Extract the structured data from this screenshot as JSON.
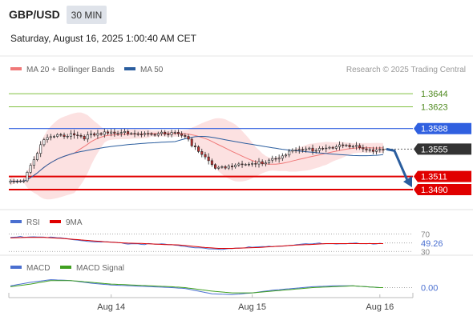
{
  "header": {
    "pair": "GBP/USD",
    "timeframe": "30 MIN",
    "datetime": "Saturday, August 16, 2025 1:00:40 AM CET"
  },
  "colors": {
    "support_line": "#e00000",
    "resistance_line": "#80c040",
    "pivot_line": "#3060e0",
    "bollinger": "#f07878",
    "ma50": "#2a5d9e",
    "rsi": "#4a6fd0",
    "rsi_ma": "#e00000",
    "macd": "#4a6fd0",
    "macd_signal": "#40a020",
    "bull_candle": "#ffffff",
    "bear_candle": "#c23030",
    "arrow": "#2a5d9e"
  },
  "chart_data": [
    {
      "type": "candlestick",
      "title": "",
      "legend": [
        {
          "label": "MA 20 + Bollinger Bands",
          "color": "#f07878"
        },
        {
          "label": "MA 50",
          "color": "#2a5d9e"
        }
      ],
      "legend_placement": "top-left",
      "watermark": "Research © 2025 Trading Central",
      "ylim": [
        1.3463,
        1.3666
      ],
      "levels": [
        {
          "value": 1.3644,
          "label": "1.3644",
          "kind": "resistance"
        },
        {
          "value": 1.3623,
          "label": "1.3623",
          "kind": "resistance"
        },
        {
          "value": 1.3588,
          "label": "1.3588",
          "kind": "pivot"
        },
        {
          "value": 1.3555,
          "label": "1.3555",
          "kind": "last"
        },
        {
          "value": 1.3511,
          "label": "1.3511",
          "kind": "support"
        },
        {
          "value": 1.349,
          "label": "1.3490",
          "kind": "support"
        }
      ],
      "x_ticks": [
        {
          "index": 30,
          "label": "Aug 14"
        },
        {
          "index": 72,
          "label": "Aug 15"
        },
        {
          "index": 110,
          "label": "Aug 16"
        }
      ],
      "x_count": 112,
      "close_anchors": [
        [
          0,
          1.3503
        ],
        [
          4,
          1.3507
        ],
        [
          6,
          1.353
        ],
        [
          8,
          1.355
        ],
        [
          10,
          1.357
        ],
        [
          14,
          1.3575
        ],
        [
          18,
          1.358
        ],
        [
          22,
          1.3575
        ],
        [
          26,
          1.3577
        ],
        [
          30,
          1.3581
        ],
        [
          34,
          1.3585
        ],
        [
          38,
          1.3578
        ],
        [
          42,
          1.3576
        ],
        [
          46,
          1.358
        ],
        [
          48,
          1.3584
        ],
        [
          50,
          1.358
        ],
        [
          52,
          1.3578
        ],
        [
          54,
          1.356
        ],
        [
          56,
          1.355
        ],
        [
          58,
          1.354
        ],
        [
          60,
          1.3528
        ],
        [
          62,
          1.3526
        ],
        [
          66,
          1.353
        ],
        [
          70,
          1.3528
        ],
        [
          74,
          1.3532
        ],
        [
          78,
          1.354
        ],
        [
          82,
          1.3548
        ],
        [
          86,
          1.3552
        ],
        [
          90,
          1.3555
        ],
        [
          94,
          1.3558
        ],
        [
          98,
          1.356
        ],
        [
          102,
          1.3558
        ],
        [
          106,
          1.3555
        ],
        [
          110,
          1.3555
        ]
      ],
      "projection": {
        "from": 1.3555,
        "to": 1.3495
      }
    },
    {
      "type": "line",
      "name": "RSI",
      "legend": [
        {
          "label": "RSI",
          "color": "#4a6fd0"
        },
        {
          "label": "9MA",
          "color": "#e00000"
        }
      ],
      "ylim": [
        25,
        80
      ],
      "ticks": [
        70,
        30
      ],
      "last_value": "49.26",
      "rsi_anchors": [
        [
          0,
          62
        ],
        [
          5,
          64
        ],
        [
          10,
          63
        ],
        [
          15,
          60
        ],
        [
          20,
          56
        ],
        [
          25,
          52
        ],
        [
          30,
          50
        ],
        [
          35,
          48
        ],
        [
          40,
          47
        ],
        [
          45,
          46
        ],
        [
          50,
          44
        ],
        [
          54,
          40
        ],
        [
          58,
          36
        ],
        [
          62,
          35
        ],
        [
          66,
          37
        ],
        [
          70,
          39
        ],
        [
          74,
          40
        ],
        [
          78,
          41
        ],
        [
          82,
          44
        ],
        [
          86,
          46
        ],
        [
          90,
          47
        ],
        [
          94,
          49
        ],
        [
          98,
          48
        ],
        [
          102,
          48
        ],
        [
          106,
          47
        ],
        [
          110,
          49
        ]
      ],
      "ma_anchors": [
        [
          0,
          61
        ],
        [
          5,
          62
        ],
        [
          10,
          62
        ],
        [
          15,
          60
        ],
        [
          20,
          57
        ],
        [
          25,
          54
        ],
        [
          30,
          51
        ],
        [
          35,
          49
        ],
        [
          40,
          48
        ],
        [
          45,
          46
        ],
        [
          50,
          45
        ],
        [
          54,
          42
        ],
        [
          58,
          39
        ],
        [
          62,
          37
        ],
        [
          66,
          37
        ],
        [
          70,
          38
        ],
        [
          74,
          39
        ],
        [
          78,
          41
        ],
        [
          82,
          43
        ],
        [
          86,
          45
        ],
        [
          90,
          46
        ],
        [
          94,
          48
        ],
        [
          98,
          48
        ],
        [
          102,
          48
        ],
        [
          106,
          48
        ],
        [
          110,
          48
        ]
      ]
    },
    {
      "type": "line",
      "name": "MACD",
      "legend": [
        {
          "label": "MACD",
          "color": "#4a6fd0"
        },
        {
          "label": "MACD Signal",
          "color": "#40a020"
        }
      ],
      "ylim": [
        -0.0015,
        0.0015
      ],
      "last_value": "0.00",
      "macd_anchors": [
        [
          0,
          0.0002
        ],
        [
          6,
          0.0006
        ],
        [
          12,
          0.0009
        ],
        [
          18,
          0.0008
        ],
        [
          24,
          0.0005
        ],
        [
          30,
          0.0003
        ],
        [
          36,
          0.0002
        ],
        [
          42,
          0.0001
        ],
        [
          48,
          0.0
        ],
        [
          52,
          -0.0001
        ],
        [
          56,
          -0.0004
        ],
        [
          60,
          -0.0007
        ],
        [
          66,
          -0.0008
        ],
        [
          72,
          -0.0006
        ],
        [
          78,
          -0.0003
        ],
        [
          84,
          -0.0001
        ],
        [
          90,
          0.0001
        ],
        [
          96,
          0.0002
        ],
        [
          102,
          0.0002
        ],
        [
          106,
          0.0001
        ],
        [
          110,
          0.0
        ]
      ],
      "signal_anchors": [
        [
          0,
          0.0001
        ],
        [
          6,
          0.0004
        ],
        [
          12,
          0.0008
        ],
        [
          18,
          0.0008
        ],
        [
          24,
          0.0006
        ],
        [
          30,
          0.0004
        ],
        [
          36,
          0.0003
        ],
        [
          42,
          0.0002
        ],
        [
          48,
          0.0001
        ],
        [
          52,
          0.0
        ],
        [
          56,
          -0.0002
        ],
        [
          60,
          -0.0004
        ],
        [
          66,
          -0.0006
        ],
        [
          72,
          -0.0006
        ],
        [
          78,
          -0.0004
        ],
        [
          84,
          -0.0002
        ],
        [
          90,
          0.0
        ],
        [
          96,
          0.0001
        ],
        [
          102,
          0.0002
        ],
        [
          106,
          0.0001
        ],
        [
          110,
          0.0
        ]
      ]
    }
  ]
}
